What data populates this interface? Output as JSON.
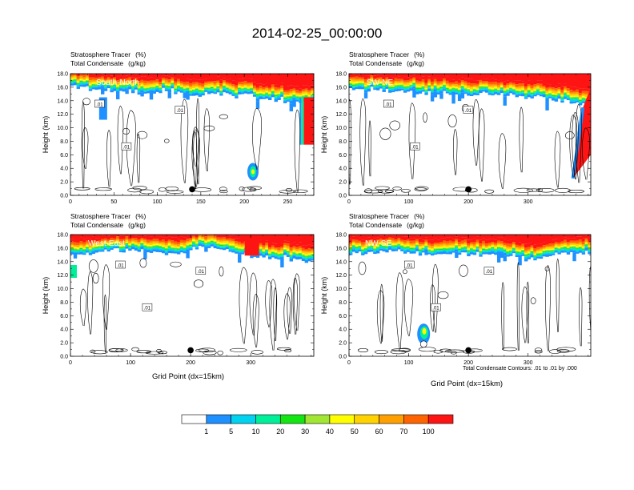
{
  "title": "2014-02-25_00:00:00",
  "caption_line1": "Stratosphere Tracer",
  "caption_unit1": "(%)",
  "caption_line2": "Total Condensate",
  "caption_unit2": "(g/kg)",
  "ylabel": "Height (km)",
  "xlabel": "Grid Point (dx=15km)",
  "contour_note": "Total Condensate Contours: .01 to .01 by .000",
  "contour_label": ".01",
  "chart_data": [
    {
      "type": "heatmap",
      "name": "South-North",
      "x_ticks": [
        0,
        50,
        100,
        150,
        200,
        250
      ],
      "xlim": [
        0,
        280
      ],
      "y_ticks": [
        "0.0",
        "2.0",
        "4.0",
        "6.0",
        "8.0",
        "10.0",
        "12.0",
        "14.0",
        "16.0",
        "18.0"
      ],
      "ylim": [
        0,
        18
      ],
      "tropopause_km": [
        16.2,
        16.0,
        15.8,
        15.6,
        15.7,
        15.5,
        15.4,
        15.3,
        15.5,
        15.2,
        15.0,
        15.3,
        15.1,
        14.8,
        15.0,
        14.2,
        14.5,
        14.0,
        13.8,
        14.2
      ],
      "marker": {
        "x": 140,
        "y": 0.9
      }
    },
    {
      "type": "heatmap",
      "name": "SW-NE",
      "x_ticks": [
        0,
        100,
        200,
        300
      ],
      "xlim": [
        0,
        405
      ],
      "y_ticks": [
        "0.0",
        "2.0",
        "4.0",
        "6.0",
        "8.0",
        "10.0",
        "12.0",
        "14.0",
        "16.0",
        "18.0"
      ],
      "ylim": [
        0,
        18
      ],
      "tropopause_km": [
        15.9,
        15.8,
        15.6,
        15.5,
        15.3,
        15.4,
        15.2,
        15.3,
        15.1,
        15.2,
        15.0,
        15.1,
        14.8,
        14.9,
        14.6,
        14.7,
        14.3,
        14.1,
        13.8,
        13.3
      ],
      "marker": {
        "x": 200,
        "y": 0.9
      }
    },
    {
      "type": "heatmap",
      "name": "West-East",
      "x_ticks": [
        0,
        100,
        200,
        300
      ],
      "xlim": [
        0,
        405
      ],
      "y_ticks": [
        "0.0",
        "2.0",
        "4.0",
        "6.0",
        "8.0",
        "10.0",
        "12.0",
        "14.0",
        "16.0",
        "18.0"
      ],
      "ylim": [
        0,
        18
      ],
      "tropopause_km": [
        15.0,
        15.2,
        15.4,
        15.6,
        15.8,
        15.7,
        15.5,
        15.6,
        15.3,
        15.4,
        16.0,
        16.2,
        16.0,
        15.5,
        15.0,
        14.8,
        14.6,
        14.8,
        14.5,
        14.3
      ],
      "marker": {
        "x": 200,
        "y": 0.9
      }
    },
    {
      "type": "heatmap",
      "name": "NW-SE",
      "x_ticks": [
        0,
        100,
        200,
        300
      ],
      "xlim": [
        0,
        405
      ],
      "y_ticks": [
        "0.0",
        "2.0",
        "4.0",
        "6.0",
        "8.0",
        "10.0",
        "12.0",
        "14.0",
        "16.0",
        "18.0"
      ],
      "ylim": [
        0,
        18
      ],
      "tropopause_km": [
        15.4,
        15.3,
        15.5,
        15.6,
        15.4,
        15.5,
        15.2,
        15.3,
        15.4,
        15.2,
        15.3,
        15.1,
        15.2,
        14.9,
        14.6,
        14.5,
        14.8,
        15.2,
        15.5,
        15.4
      ],
      "marker": {
        "x": 200,
        "y": 0.9
      }
    }
  ],
  "colorbar": {
    "colors": [
      "#ffffff",
      "#1e90ff",
      "#00d2f0",
      "#00f09a",
      "#14e614",
      "#a0e632",
      "#ffff00",
      "#ffd200",
      "#ffa000",
      "#ff6400",
      "#ff1414"
    ],
    "labels": [
      "1",
      "5",
      "10",
      "20",
      "30",
      "40",
      "50",
      "60",
      "70",
      "100"
    ]
  },
  "band_colors": [
    "#ff1414",
    "#ff6400",
    "#ffa000",
    "#ffd200",
    "#ffff00",
    "#a0e632",
    "#14e614",
    "#00f09a",
    "#00d2f0",
    "#1e90ff"
  ]
}
